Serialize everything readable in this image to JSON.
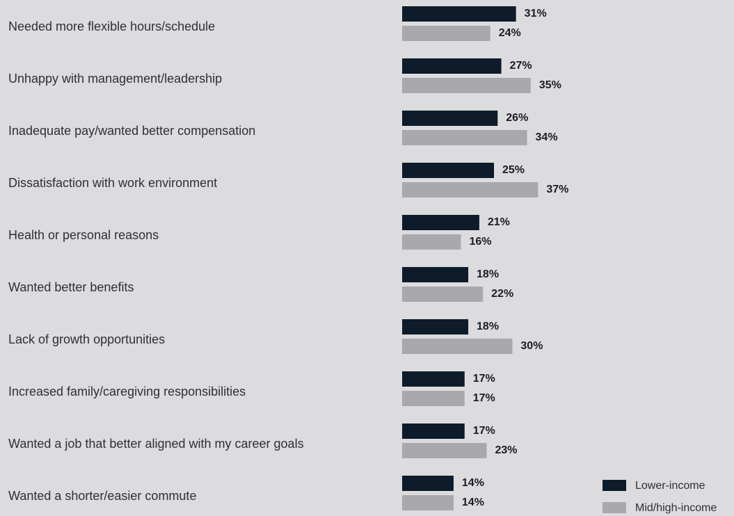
{
  "chart_data": {
    "type": "bar",
    "orientation": "horizontal",
    "categories": [
      "Needed more flexible hours/schedule",
      "Unhappy with management/leadership",
      "Inadequate pay/wanted better compensation",
      "Dissatisfaction with work environment",
      "Health or personal reasons",
      "Wanted better benefits",
      "Lack of growth opportunities",
      "Increased family/caregiving responsibilities",
      "Wanted a job that better aligned with my career goals",
      "Wanted a shorter/easier commute"
    ],
    "series": [
      {
        "name": "Lower-income",
        "color": "#0d1b2a",
        "values": [
          31,
          27,
          26,
          25,
          21,
          18,
          18,
          17,
          17,
          14
        ],
        "value_labels": [
          "31%",
          "27%",
          "26%",
          "25%",
          "21%",
          "18%",
          "18%",
          "17%",
          "17%",
          "14%"
        ]
      },
      {
        "name": "Mid/high-income",
        "color": "#a8a8ad",
        "values": [
          24,
          35,
          34,
          37,
          16,
          22,
          30,
          17,
          23,
          14
        ],
        "value_labels": [
          "24%",
          "35%",
          "34%",
          "37%",
          "16%",
          "22%",
          "30%",
          "17%",
          "23%",
          "14%"
        ]
      }
    ],
    "legend": "lower right"
  }
}
